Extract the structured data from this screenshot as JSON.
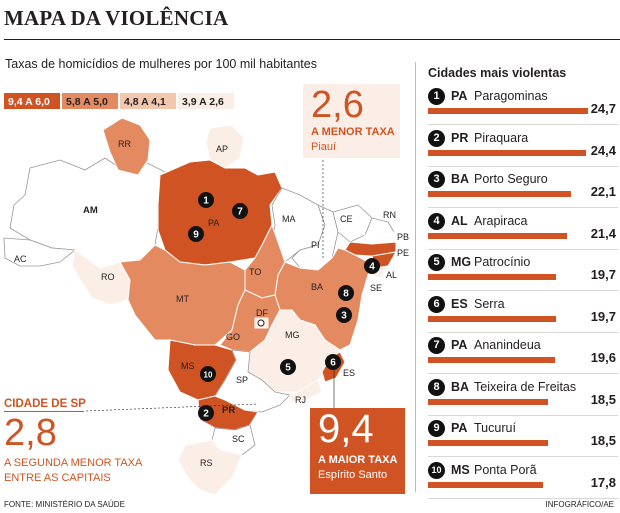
{
  "header": {
    "title": "MAPA DA VIOLÊNCIA",
    "subtitle": "Taxas de homicídios de mulheres por 100 mil habitantes"
  },
  "legend": [
    {
      "label": "9,4 A 6,0",
      "color": "#d05423"
    },
    {
      "label": "5,8 A 5,0",
      "color": "#e38a60"
    },
    {
      "label": "4,8 A 4,1",
      "color": "#f3c6ae"
    },
    {
      "label": "3,9 A 2,6",
      "color": "#fbeee6"
    }
  ],
  "map": {
    "states": [
      {
        "code": "AM",
        "label": "AM",
        "color": "#ffffff"
      },
      {
        "code": "RR",
        "label": "RR",
        "color": "#e38a60"
      },
      {
        "code": "AP",
        "label": "AP",
        "color": "#fbeee6"
      },
      {
        "code": "PA",
        "label": "PA",
        "color": "#d05423"
      },
      {
        "code": "MA",
        "label": "MA",
        "color": "#ffffff"
      },
      {
        "code": "PI",
        "label": "PI",
        "color": "#ffffff"
      },
      {
        "code": "CE",
        "label": "CE",
        "color": "#ffffff"
      },
      {
        "code": "RN",
        "label": "RN",
        "color": "#ffffff"
      },
      {
        "code": "PB",
        "label": "PB",
        "color": "#ffffff"
      },
      {
        "code": "PE",
        "label": "PE",
        "color": "#d05423"
      },
      {
        "code": "AL",
        "label": "AL",
        "color": "#d05423"
      },
      {
        "code": "SE",
        "label": "SE",
        "color": "#fbeee6"
      },
      {
        "code": "BA",
        "label": "BA",
        "color": "#e38a60"
      },
      {
        "code": "AC",
        "label": "AC",
        "color": "#ffffff"
      },
      {
        "code": "RO",
        "label": "RO",
        "color": "#fbeee6"
      },
      {
        "code": "TO",
        "label": "TO",
        "color": "#e38a60"
      },
      {
        "code": "MT",
        "label": "MT",
        "color": "#e38a60"
      },
      {
        "code": "GO",
        "label": "GO",
        "color": "#e38a60"
      },
      {
        "code": "DF",
        "label": "DF",
        "color": "#fbeee6"
      },
      {
        "code": "MG",
        "label": "MG",
        "color": "#fbeee6"
      },
      {
        "code": "ES",
        "label": "ES",
        "color": "#d05423"
      },
      {
        "code": "MS",
        "label": "MS",
        "color": "#d05423"
      },
      {
        "code": "SP",
        "label": "SP",
        "color": "#ffffff"
      },
      {
        "code": "RJ",
        "label": "RJ",
        "color": "#fbeee6"
      },
      {
        "code": "PR",
        "label": "PR",
        "color": "#d05423"
      },
      {
        "code": "SC",
        "label": "SC",
        "color": "#ffffff"
      },
      {
        "code": "RS",
        "label": "RS",
        "color": "#fbeee6"
      }
    ]
  },
  "callout_min": {
    "value": "2,6",
    "label": "A MENOR TAXA",
    "state": "Piauí"
  },
  "callout_max": {
    "value": "9,4",
    "label": "A MAIOR TAXA",
    "state": "Espírito Santo"
  },
  "callout_sp": {
    "label": "CIDADE DE SP",
    "value": "2,8",
    "desc1": "A SEGUNDA MENOR TAXA",
    "desc2": "ENTRE AS CAPITAIS"
  },
  "cities": {
    "title": "Cidades mais violentas",
    "max_rate": 24.7,
    "items": [
      {
        "rank": "1",
        "uf": "PA",
        "name": "Paragominas",
        "rate": 24.7,
        "rate_label": "24,7"
      },
      {
        "rank": "2",
        "uf": "PR",
        "name": "Piraquara",
        "rate": 24.4,
        "rate_label": "24,4"
      },
      {
        "rank": "3",
        "uf": "BA",
        "name": "Porto Seguro",
        "rate": 22.1,
        "rate_label": "22,1"
      },
      {
        "rank": "4",
        "uf": "AL",
        "name": "Arapiraca",
        "rate": 21.4,
        "rate_label": "21,4"
      },
      {
        "rank": "5",
        "uf": "MG",
        "name": "Patrocínio",
        "rate": 19.7,
        "rate_label": "19,7"
      },
      {
        "rank": "6",
        "uf": "ES",
        "name": "Serra",
        "rate": 19.7,
        "rate_label": "19,7"
      },
      {
        "rank": "7",
        "uf": "PA",
        "name": "Ananindeua",
        "rate": 19.6,
        "rate_label": "19,6"
      },
      {
        "rank": "8",
        "uf": "BA",
        "name": "Teixeira de Freitas",
        "rate": 18.5,
        "rate_label": "18,5"
      },
      {
        "rank": "9",
        "uf": "PA",
        "name": "Tucuruí",
        "rate": 18.5,
        "rate_label": "18,5"
      },
      {
        "rank": "10",
        "uf": "MS",
        "name": "Ponta Porã",
        "rate": 17.8,
        "rate_label": "17,8"
      }
    ]
  },
  "footer": {
    "source": "FONTE: MINISTÉRIO DA SAÚDE",
    "credit": "INFOGRÁFICO/AE"
  }
}
